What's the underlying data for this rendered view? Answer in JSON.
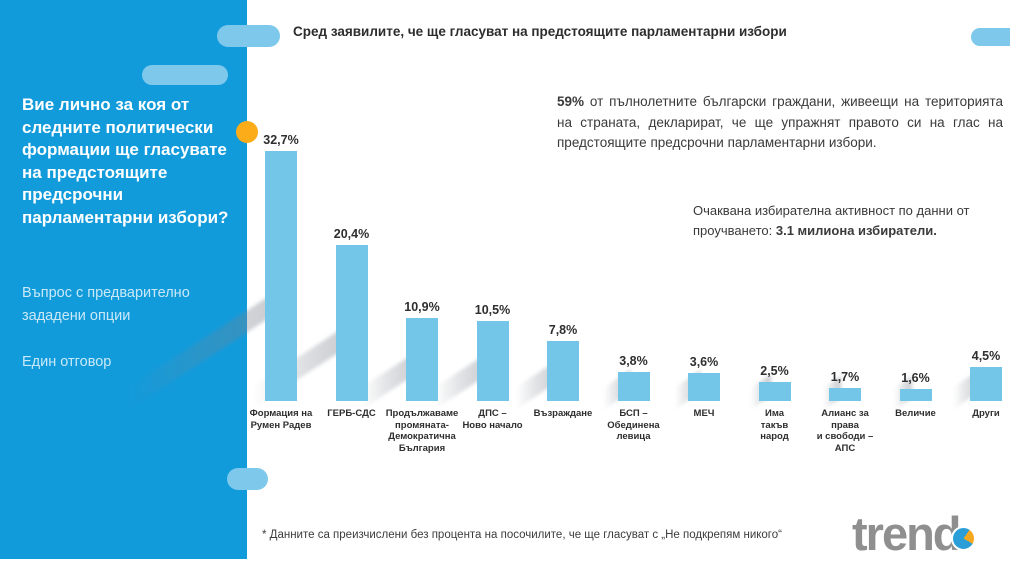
{
  "slide": {
    "title": "Сред заявилите, че ще гласуват на предстоящите парламентарни избори",
    "sidebar": {
      "question": "Вие лично за коя от\nследните политически\nформации ще гласувате\nна предстоящите\nпредсрочни\nпарламентарни избори?",
      "note1": "Въпрос с предварително\nзададени опции",
      "note2": "Един отговор"
    },
    "paragraph1": {
      "lead": "59%",
      "rest": " от пълнолетните български граждани, живеещи на територията на страната, декларират, че ще упражнят правото си на глас на предстоящите предсрочни парламентарни избори."
    },
    "paragraph2": {
      "normal": "Очаквана избирателна активност по данни от проучването: ",
      "bold": "3.1 милиона избиратели."
    },
    "footnote": "* Данните са преизчислени без процента на посочилите, че ще гласуват с „Не подкрепям никого“",
    "logo_text": "trend"
  },
  "colors": {
    "sidebar_blue": "#129BDB",
    "pill_blue": "#7DC8EB",
    "bar_blue": "#73C6E8",
    "accent_orange": "#FBAC18",
    "text_dark": "#2E2E2E",
    "logo_gray": "#8F8F8F"
  },
  "chart_data": {
    "type": "bar",
    "title": "Сред заявилите, че ще гласуват на предстоящите парламентарни избори",
    "categories": [
      "Формация на Румен Радев",
      "ГЕРБ-СДС",
      "Продължаваме промяната-Демократична България",
      "ДПС – Ново начало",
      "Възраждане",
      "БСП – Обединена левица",
      "МЕЧ",
      "Има такъв народ",
      "Алианс за права и свободи – АПС",
      "Величие",
      "Други"
    ],
    "category_lines": [
      "Формация на\nРумен Радев",
      "ГЕРБ-СДС",
      "Продължаваме\nпромяната-\nДемократична\nБългария",
      "ДПС –\nНово начало",
      "Възраждане",
      "БСП –\nОбединена\nлевица",
      "МЕЧ",
      "Има\nтакъв\nнарод",
      "Алианс за\nправа\nи свободи –\nАПС",
      "Величие",
      "Други"
    ],
    "values": [
      32.7,
      20.4,
      10.9,
      10.5,
      7.8,
      3.8,
      3.6,
      2.5,
      1.7,
      1.6,
      4.5
    ],
    "value_labels": [
      "32,7%",
      "20,4%",
      "10,9%",
      "10,5%",
      "7,8%",
      "3,8%",
      "3,6%",
      "2,5%",
      "1,7%",
      "1,6%",
      "4,5%"
    ],
    "unit": "%",
    "ylim": [
      0,
      35
    ],
    "grid": false,
    "legend": "none",
    "xlabel": "",
    "ylabel": ""
  }
}
